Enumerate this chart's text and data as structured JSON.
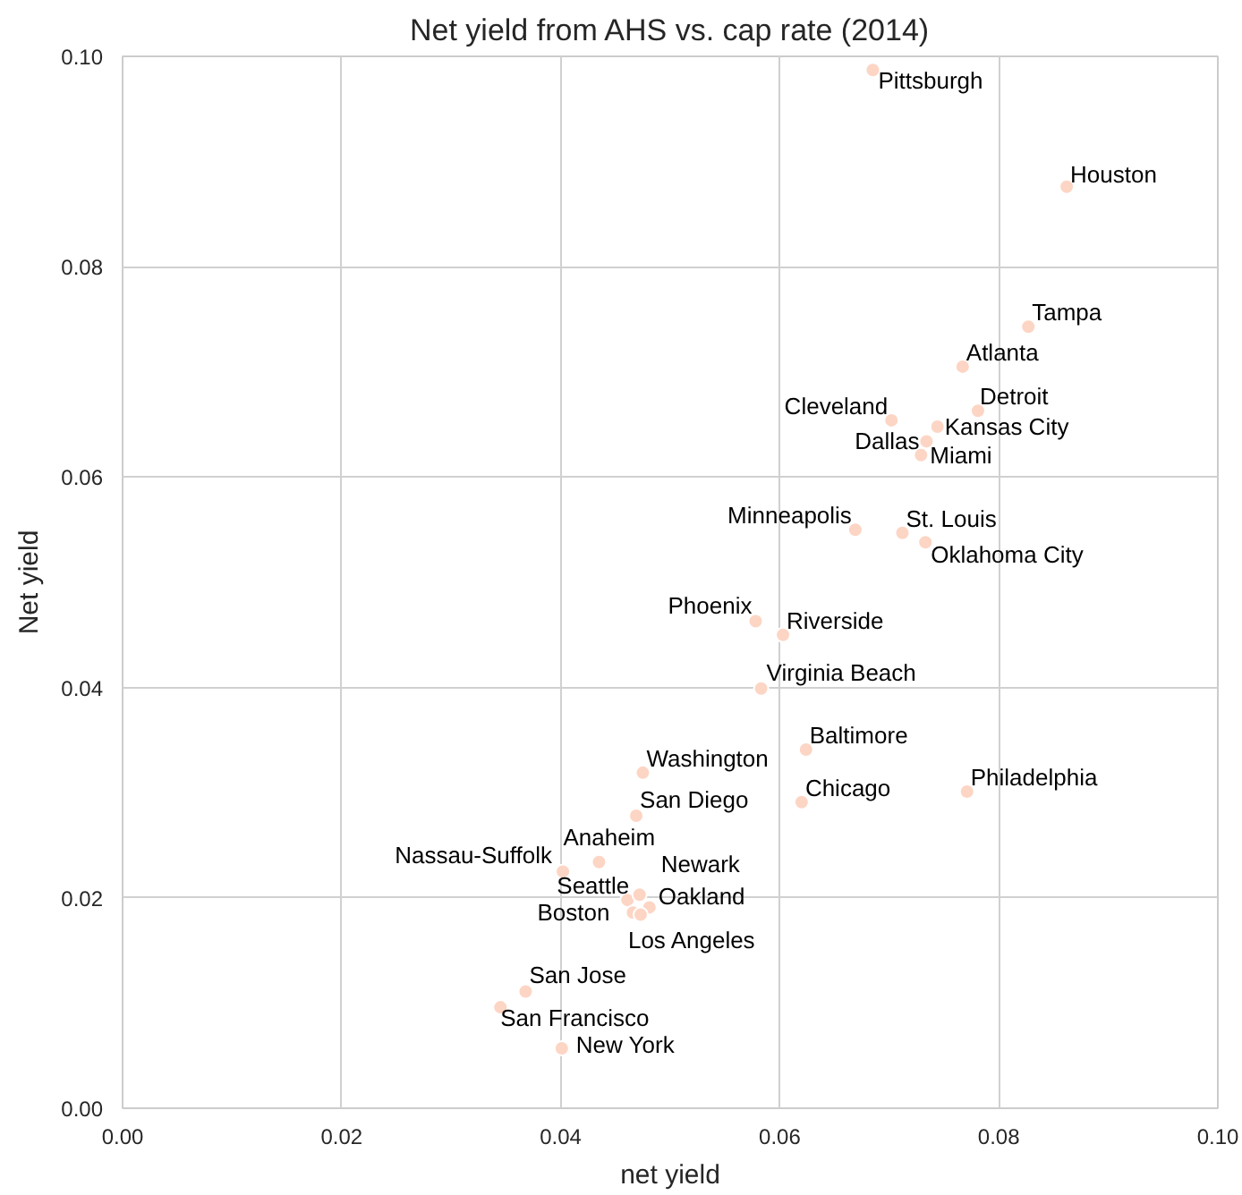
{
  "chart_data": {
    "type": "scatter",
    "title": "Net yield from AHS vs. cap rate (2014)",
    "xlabel": "net yield",
    "ylabel": "Net yield",
    "x": [
      0.0685,
      0.0862,
      0.0827,
      0.0767,
      0.0781,
      0.0702,
      0.0744,
      0.0734,
      0.0729,
      0.0669,
      0.0712,
      0.0733,
      0.0578,
      0.0603,
      0.0583,
      0.0624,
      0.0475,
      0.062,
      0.0771,
      0.0469,
      0.0435,
      0.0402,
      0.0461,
      0.0472,
      0.0481,
      0.0466,
      0.0473,
      0.0368,
      0.0345,
      0.0401
    ],
    "values": [
      0.0987,
      0.0876,
      0.0743,
      0.0705,
      0.0663,
      0.0654,
      0.0648,
      0.0634,
      0.0621,
      0.055,
      0.0547,
      0.0538,
      0.0463,
      0.045,
      0.0399,
      0.0341,
      0.0319,
      0.0291,
      0.0301,
      0.0278,
      0.0234,
      0.0225,
      0.0198,
      0.0203,
      0.0191,
      0.0186,
      0.0184,
      0.0111,
      0.0096,
      0.0057
    ],
    "annotations": [
      {
        "text": "Pittsburgh",
        "x": 0.0685,
        "y": 0.0987
      },
      {
        "text": "Houston",
        "x": 0.0862,
        "y": 0.0876
      },
      {
        "text": "Tampa",
        "x": 0.0827,
        "y": 0.0743
      },
      {
        "text": "Atlanta",
        "x": 0.0767,
        "y": 0.0705
      },
      {
        "text": "Detroit",
        "x": 0.0781,
        "y": 0.0663
      },
      {
        "text": "Cleveland",
        "x": 0.0702,
        "y": 0.0654
      },
      {
        "text": "Kansas City",
        "x": 0.0744,
        "y": 0.0648
      },
      {
        "text": "Dallas",
        "x": 0.0734,
        "y": 0.0634
      },
      {
        "text": "Miami",
        "x": 0.0729,
        "y": 0.0621
      },
      {
        "text": "Minneapolis",
        "x": 0.0669,
        "y": 0.055
      },
      {
        "text": "St. Louis",
        "x": 0.0712,
        "y": 0.0547
      },
      {
        "text": "Oklahoma City",
        "x": 0.0733,
        "y": 0.0538
      },
      {
        "text": "Phoenix",
        "x": 0.0578,
        "y": 0.0463
      },
      {
        "text": "Riverside",
        "x": 0.0603,
        "y": 0.045
      },
      {
        "text": "Virginia Beach",
        "x": 0.0583,
        "y": 0.0399
      },
      {
        "text": "Baltimore",
        "x": 0.0624,
        "y": 0.0341
      },
      {
        "text": "Washington",
        "x": 0.0475,
        "y": 0.0319
      },
      {
        "text": "Chicago",
        "x": 0.062,
        "y": 0.0291
      },
      {
        "text": "Philadelphia",
        "x": 0.0771,
        "y": 0.0301
      },
      {
        "text": "San Diego",
        "x": 0.0469,
        "y": 0.0278
      },
      {
        "text": "Anaheim",
        "x": 0.0435,
        "y": 0.0234
      },
      {
        "text": "Nassau-Suffolk",
        "x": 0.0402,
        "y": 0.0225
      },
      {
        "text": "Seattle",
        "x": 0.0461,
        "y": 0.0198
      },
      {
        "text": "Newark",
        "x": 0.0472,
        "y": 0.0203
      },
      {
        "text": "Oakland",
        "x": 0.0481,
        "y": 0.0191
      },
      {
        "text": "Boston",
        "x": 0.0466,
        "y": 0.0186
      },
      {
        "text": "Los Angeles",
        "x": 0.0473,
        "y": 0.0184
      },
      {
        "text": "San Jose",
        "x": 0.0368,
        "y": 0.0111
      },
      {
        "text": "San Francisco",
        "x": 0.0345,
        "y": 0.0096
      },
      {
        "text": "New York",
        "x": 0.0401,
        "y": 0.0057
      }
    ],
    "color": "#fdd5c4",
    "marker": "circle",
    "grid": true,
    "xlim": [
      0,
      0.1
    ],
    "xticks": [
      {
        "value": 0,
        "label": "0.00"
      },
      0.02,
      0.04,
      0.06,
      0.08,
      {
        "value": 0.1,
        "label": "0.10"
      }
    ],
    "ylim": [
      0,
      0.1
    ],
    "yticks": [
      {
        "value": 0,
        "label": "0.00"
      },
      0.02,
      0.04,
      0.06,
      0.08,
      {
        "value": 0.1,
        "label": "0.10"
      }
    ]
  }
}
